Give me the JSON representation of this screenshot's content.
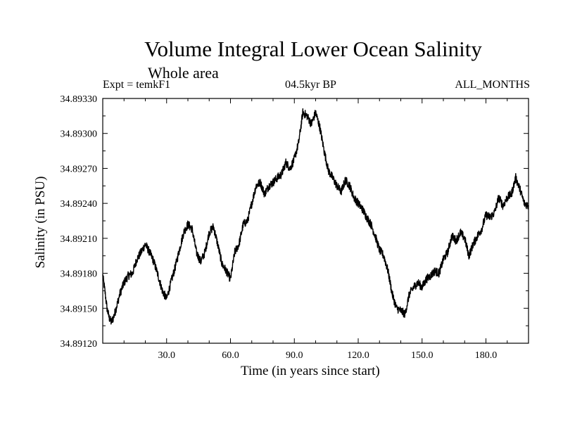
{
  "chart_data": {
    "type": "line",
    "title": "Volume Integral Lower Ocean Salinity",
    "subtitle": "Whole area",
    "header_left": "Expt = temkF1",
    "header_center": "04.5kyr BP",
    "header_right": "ALL_MONTHS",
    "xlabel": "Time (in years since start)",
    "ylabel": "Salinity (in PSU)",
    "xlim": [
      0,
      200
    ],
    "ylim": [
      34.8912,
      34.8933
    ],
    "xticks": [
      30,
      60,
      90,
      120,
      150,
      180
    ],
    "xtick_labels": [
      "30.0",
      "60.0",
      "90.0",
      "120.0",
      "150.0",
      "180.0"
    ],
    "yticks": [
      34.8912,
      34.8915,
      34.8918,
      34.8921,
      34.8924,
      34.8927,
      34.893,
      34.8933
    ],
    "ytick_labels": [
      "34.89120",
      "34.89150",
      "34.89180",
      "34.89210",
      "34.89240",
      "34.89270",
      "34.89300",
      "34.89330"
    ],
    "grid": false,
    "series": [
      {
        "name": "Salinity",
        "x": [
          0,
          1,
          2,
          3,
          4,
          5,
          6,
          8,
          10,
          12,
          14,
          16,
          18,
          20,
          22,
          24,
          26,
          28,
          30,
          32,
          34,
          36,
          38,
          40,
          42,
          44,
          46,
          48,
          50,
          52,
          54,
          56,
          58,
          60,
          62,
          64,
          66,
          68,
          70,
          72,
          74,
          76,
          78,
          80,
          82,
          84,
          86,
          88,
          90,
          92,
          94,
          96,
          98,
          100,
          102,
          104,
          106,
          108,
          110,
          112,
          114,
          116,
          118,
          120,
          122,
          124,
          126,
          128,
          130,
          132,
          134,
          136,
          138,
          140,
          142,
          144,
          146,
          148,
          150,
          152,
          154,
          156,
          158,
          160,
          162,
          164,
          166,
          168,
          170,
          172,
          174,
          176,
          178,
          180,
          182,
          184,
          186,
          188,
          190,
          192,
          194,
          196,
          198,
          200
        ],
        "values": [
          34.89178,
          34.89165,
          34.8915,
          34.89142,
          34.89138,
          34.89142,
          34.89148,
          34.89162,
          34.89172,
          34.89178,
          34.8918,
          34.89192,
          34.89198,
          34.89205,
          34.89198,
          34.8919,
          34.89178,
          34.89165,
          34.89158,
          34.89172,
          34.89185,
          34.892,
          34.89215,
          34.89222,
          34.89218,
          34.89198,
          34.8919,
          34.89198,
          34.89215,
          34.8922,
          34.89205,
          34.89188,
          34.89182,
          34.89175,
          34.89198,
          34.89205,
          34.89222,
          34.89225,
          34.8924,
          34.89255,
          34.89258,
          34.89248,
          34.89255,
          34.89258,
          34.89262,
          34.89265,
          34.89275,
          34.8927,
          34.89278,
          34.89292,
          34.89318,
          34.89315,
          34.89308,
          34.89318,
          34.89305,
          34.89285,
          34.89268,
          34.89262,
          34.89255,
          34.8925,
          34.8926,
          34.89255,
          34.89245,
          34.8924,
          34.89235,
          34.89228,
          34.89222,
          34.89212,
          34.892,
          34.89195,
          34.89182,
          34.89162,
          34.8915,
          34.89148,
          34.89145,
          34.89162,
          34.89168,
          34.89172,
          34.89168,
          34.89175,
          34.89178,
          34.89182,
          34.8918,
          34.89192,
          34.89198,
          34.89212,
          34.89208,
          34.89215,
          34.8921,
          34.89195,
          34.89205,
          34.89212,
          34.89218,
          34.8923,
          34.89228,
          34.89232,
          34.89245,
          34.89238,
          34.89245,
          34.89248,
          34.89262,
          34.89252,
          34.8924,
          34.89238
        ]
      }
    ]
  }
}
